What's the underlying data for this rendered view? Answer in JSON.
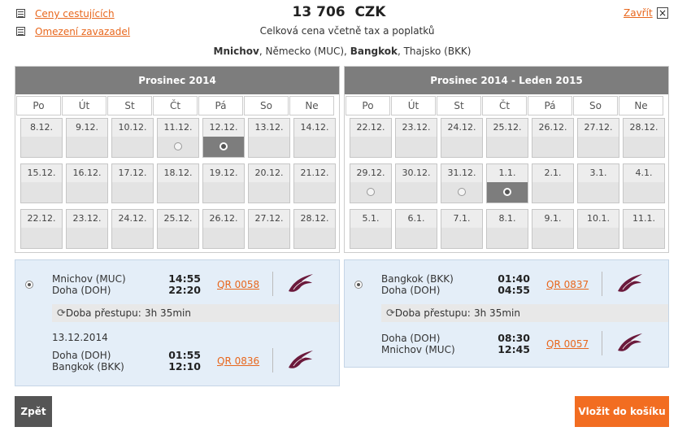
{
  "top": {
    "links": [
      "Ceny cestujících",
      "Omezení zavazadel"
    ],
    "price": "13 706",
    "currency": "CZK",
    "price_note": "Celková cena včetně tax a poplatků",
    "close_label": "Zavřít",
    "close_glyph": "×"
  },
  "route": {
    "from_city": "Mnichov",
    "from_rest": ", Německo (MUC),",
    "to_city": "Bangkok",
    "to_rest": ", Thajsko (BKK)"
  },
  "weekdays": [
    "Po",
    "Út",
    "St",
    "Čt",
    "Pá",
    "So",
    "Ne"
  ],
  "calendars": [
    {
      "title": "Prosinec 2014",
      "rows": [
        [
          "8.12.",
          "9.12.",
          "10.12.",
          "11.12.",
          "12.12.",
          "13.12.",
          "14.12."
        ],
        [
          "15.12.",
          "16.12.",
          "17.12.",
          "18.12.",
          "19.12.",
          "20.12.",
          "21.12."
        ],
        [
          "22.12.",
          "23.12.",
          "24.12.",
          "25.12.",
          "26.12.",
          "27.12.",
          "28.12."
        ]
      ]
    },
    {
      "title": "Prosinec 2014 - Leden 2015",
      "rows": [
        [
          "22.12.",
          "23.12.",
          "24.12.",
          "25.12.",
          "26.12.",
          "27.12.",
          "28.12."
        ],
        [
          "29.12.",
          "30.12.",
          "31.12.",
          "1.1.",
          "2.1.",
          "3.1.",
          "4.1."
        ],
        [
          "5.1.",
          "6.1.",
          "7.1.",
          "8.1.",
          "9.1.",
          "10.1.",
          "11.1."
        ]
      ]
    }
  ],
  "outbound": {
    "leg1": {
      "from": "Mnichov (MUC)",
      "to": "Doha (DOH)",
      "dep": "14:55",
      "arr": "22:20",
      "flight": "QR 0058"
    },
    "transfer_label": "Doba přestupu:",
    "transfer_time": "3h 35min",
    "date": "13.12.2014",
    "leg2": {
      "from": "Doha (DOH)",
      "to": "Bangkok (BKK)",
      "dep": "01:55",
      "arr": "12:10",
      "flight": "QR 0836"
    }
  },
  "inbound": {
    "leg1": {
      "from": "Bangkok (BKK)",
      "to": "Doha (DOH)",
      "dep": "01:40",
      "arr": "04:55",
      "flight": "QR 0837"
    },
    "transfer_label": "Doba přestupu:",
    "transfer_time": "3h 35min",
    "leg2": {
      "from": "Doha (DOH)",
      "to": "Mnichov (MUC)",
      "dep": "08:30",
      "arr": "12:45",
      "flight": "QR 0057"
    }
  },
  "buttons": {
    "back": "Zpět",
    "add_to_cart": "Vložit do košíku"
  },
  "colors": {
    "accent": "#e8671d",
    "header_gray": "#7d7d7d",
    "flight_bg": "#e4eef8",
    "airline": "#6b1a3c"
  }
}
